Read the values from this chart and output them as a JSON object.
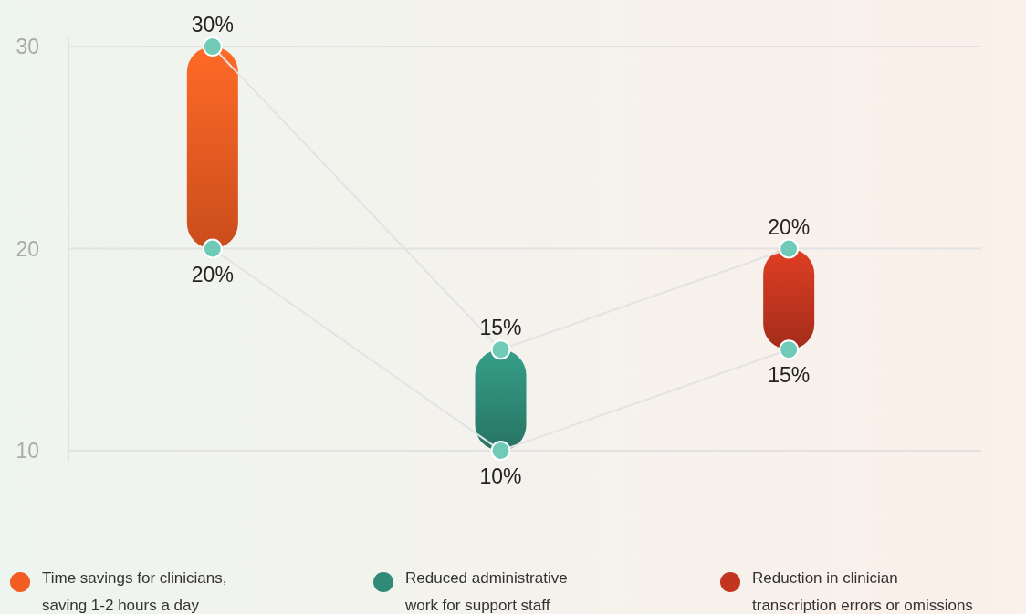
{
  "chart_data": {
    "type": "bar",
    "categories": [
      null,
      null,
      null
    ],
    "series": [
      {
        "name": "Time savings for clinicians, saving 1-2 hours a day",
        "color": "#f25c22",
        "values": [
          10,
          null,
          null
        ],
        "base": [
          20,
          null,
          null
        ]
      },
      {
        "name": "Reduced administrative work for support staff",
        "color": "#2f8a76",
        "values": [
          null,
          5,
          null
        ],
        "base": [
          null,
          10,
          null
        ]
      },
      {
        "name": "Reduction in clinician transcription errors or omissions",
        "color": "#c2361f",
        "values": [
          null,
          null,
          5
        ],
        "base": [
          null,
          null,
          15
        ]
      },
      {
        "type": "line",
        "color": "#e3e3e3",
        "values": [
          30,
          15,
          20
        ],
        "marker": "none"
      },
      {
        "type": "line",
        "color": "#e3e3e3",
        "values": [
          20,
          10,
          15
        ],
        "marker": "none"
      },
      {
        "type": "scatter",
        "color": "#6fcab8",
        "values": [
          30,
          15,
          20
        ],
        "marker": "circle",
        "value_labels": [
          "30%",
          "15%",
          "20%"
        ]
      },
      {
        "type": "scatter",
        "color": "#6fcab8",
        "values": [
          20,
          10,
          15
        ],
        "marker": "circle",
        "value_labels": [
          "20%",
          "10%",
          "15%"
        ]
      }
    ],
    "ylim": [
      9.5,
      30.5
    ],
    "yticks": [
      10,
      20,
      30
    ],
    "grid": "y",
    "legend": "bottom",
    "tick_labels": "y"
  }
}
